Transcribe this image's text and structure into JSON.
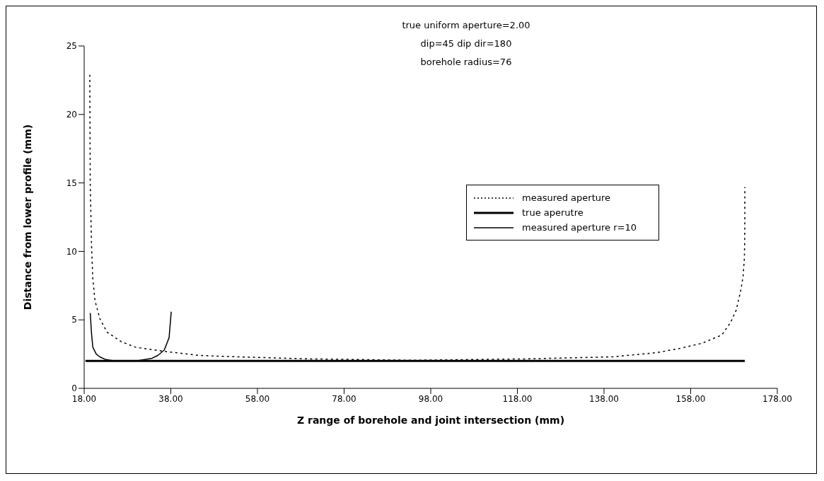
{
  "chart_data": {
    "type": "line",
    "xlabel": "Z range of borehole and joint intersection (mm)",
    "ylabel": "Distance from lower profile (mm)",
    "annotations": [
      "true uniform aperture=2.00",
      "dip=45  dip dir=180",
      "borehole radius=76"
    ],
    "xlim": [
      18,
      178
    ],
    "xticks": [
      {
        "value": 18,
        "label": "18.00"
      },
      {
        "value": 38,
        "label": "38.00"
      },
      {
        "value": 58,
        "label": "58.00"
      },
      {
        "value": 78,
        "label": "78.00"
      },
      {
        "value": 98,
        "label": "98.00"
      },
      {
        "value": 118,
        "label": "118.00"
      },
      {
        "value": 138,
        "label": "138.00"
      },
      {
        "value": 158,
        "label": "158.00"
      },
      {
        "value": 178,
        "label": "178.00"
      }
    ],
    "ylim": [
      0,
      25
    ],
    "yticks": [
      0,
      5,
      10,
      15,
      20,
      25
    ],
    "grid": false,
    "legend": "right",
    "marker": "none",
    "series": [
      {
        "name": "measured aperture",
        "color": "#000000",
        "line_style": "dotted",
        "x": [
          19.3,
          19.4,
          19.7,
          20,
          20.5,
          21.6,
          23.3,
          26.6,
          29.9,
          36.5,
          44.7,
          53.5,
          70,
          94,
          120,
          140,
          150,
          155.3,
          160.7,
          165.2,
          167.2,
          168.5,
          169.6,
          170.1,
          170.4,
          170.5,
          170.5
        ],
        "values": [
          22.9,
          15,
          10.4,
          8,
          6.4,
          5.1,
          4.1,
          3.4,
          3.0,
          2.7,
          2.4,
          2.3,
          2.15,
          2.05,
          2.15,
          2.3,
          2.6,
          2.9,
          3.3,
          3.9,
          4.8,
          5.7,
          7.2,
          8.2,
          9.5,
          11.7,
          14.7
        ]
      },
      {
        "name": "true aperutre",
        "color": "#000000",
        "line_style": "solid",
        "x": [
          18.3,
          170.5
        ],
        "values": [
          2,
          2
        ]
      },
      {
        "name": "measured aperture r=10",
        "color": "#000000",
        "line_style": "solid",
        "x": [
          19.4,
          19.7,
          20,
          20.8,
          21.6,
          23,
          25,
          30,
          33.7,
          35,
          36.5,
          37.6,
          38.1
        ],
        "values": [
          5.5,
          4,
          3,
          2.5,
          2.3,
          2.1,
          2.0,
          2.0,
          2.2,
          2.4,
          2.8,
          3.7,
          5.6
        ]
      }
    ]
  }
}
